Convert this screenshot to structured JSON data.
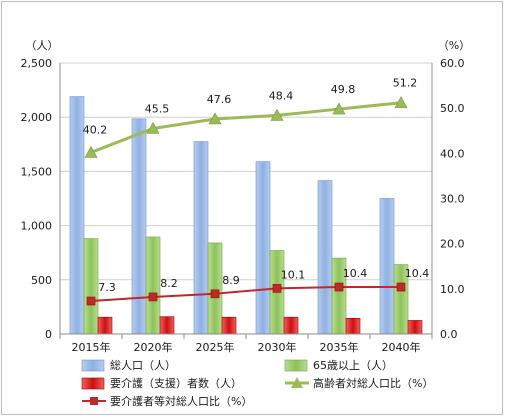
{
  "chart_data": {
    "type": "bar",
    "categories": [
      "2015年",
      "2020年",
      "2025年",
      "2030年",
      "2035年",
      "2040年"
    ],
    "left_axis": {
      "unit_label": "（人）",
      "ylim": [
        0,
        2500
      ],
      "ticks": [
        "0",
        "500",
        "1,000",
        "1,500",
        "2,000",
        "2,500"
      ]
    },
    "right_axis": {
      "unit_label": "（%）",
      "ylim": [
        0,
        60
      ],
      "ticks": [
        "0.0",
        "10.0",
        "20.0",
        "30.0",
        "40.0",
        "50.0",
        "60.0"
      ]
    },
    "grid": true,
    "legend_position": "bottom",
    "series": [
      {
        "name": "総人口（人）",
        "kind": "bar",
        "axis": "left",
        "color": "#7ea0d8",
        "values": [
          2190,
          1985,
          1775,
          1590,
          1415,
          1250
        ]
      },
      {
        "name": "65歳以上（人）",
        "kind": "bar",
        "axis": "left",
        "color": "#8dc25a",
        "values": [
          880,
          895,
          840,
          770,
          700,
          640
        ]
      },
      {
        "name": "要介護（支援）者数（人）",
        "kind": "bar",
        "axis": "left",
        "color": "#e02020",
        "values": [
          155,
          160,
          155,
          155,
          145,
          125
        ]
      },
      {
        "name": "高齢者対総人口比（%）",
        "kind": "line",
        "axis": "right",
        "color": "#9bbb59",
        "marker": "triangle",
        "values": [
          40.2,
          45.5,
          47.6,
          48.4,
          49.8,
          51.2
        ],
        "labels": [
          "40.2",
          "45.5",
          "47.6",
          "48.4",
          "49.8",
          "51.2"
        ]
      },
      {
        "name": "要介護者等対総人口比（%）",
        "kind": "line",
        "axis": "right",
        "color": "#c0282a",
        "marker": "square",
        "values": [
          7.3,
          8.2,
          8.9,
          10.1,
          10.4,
          10.4
        ],
        "labels": [
          "7.3",
          "8.2",
          "8.9",
          "10.1",
          "10.4",
          "10.4"
        ]
      }
    ]
  }
}
